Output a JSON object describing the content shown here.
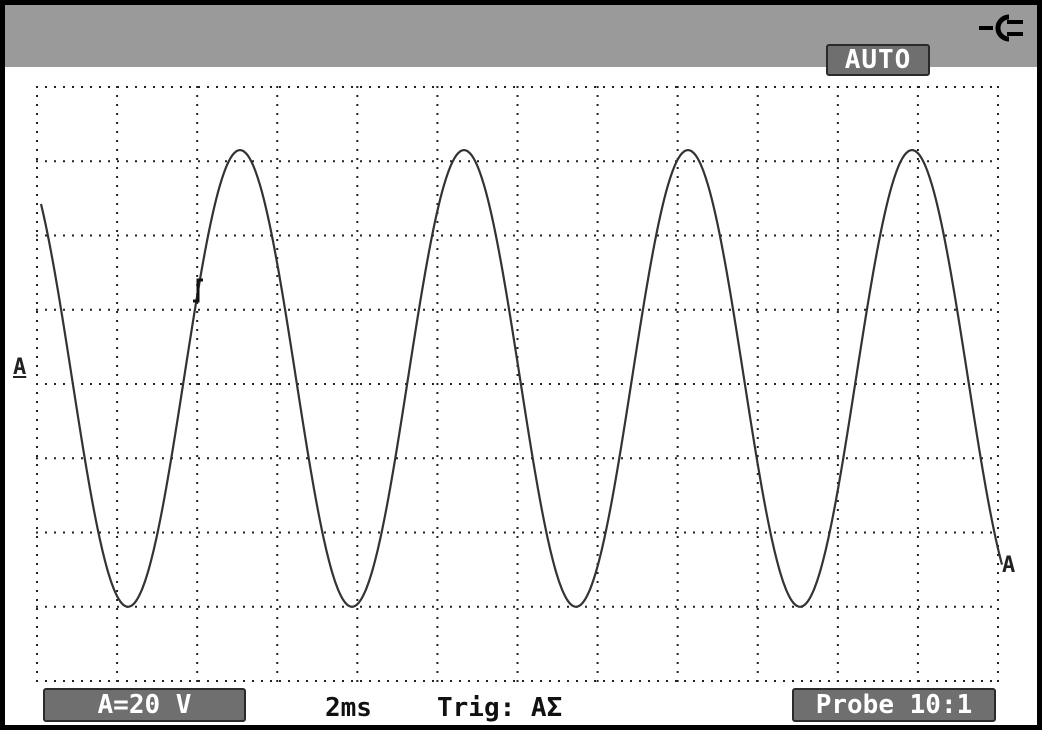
{
  "status": {
    "mode": "AUTO",
    "power_icon": "power-plug-icon"
  },
  "readout": {
    "channel_scale": "A=20 V",
    "timebase": "2ms",
    "trigger": "Trig: AƩ",
    "probe": "Probe 10:1"
  },
  "markers": {
    "ground_marker": "A",
    "trace_end_marker": "A"
  },
  "colors": {
    "top_bar": "#9a9a9a",
    "trace": "#333333",
    "grid_dots": "#222222",
    "badge_fill": "#6f6f6f",
    "badge_text": "#ffffff"
  },
  "trace": {
    "shape": "sine",
    "divisions_x": 12,
    "divisions_y": 8,
    "cycles_on_screen": 4.3,
    "peak_div_above_center": 3.15,
    "trough_div_below_center": 3.0
  }
}
